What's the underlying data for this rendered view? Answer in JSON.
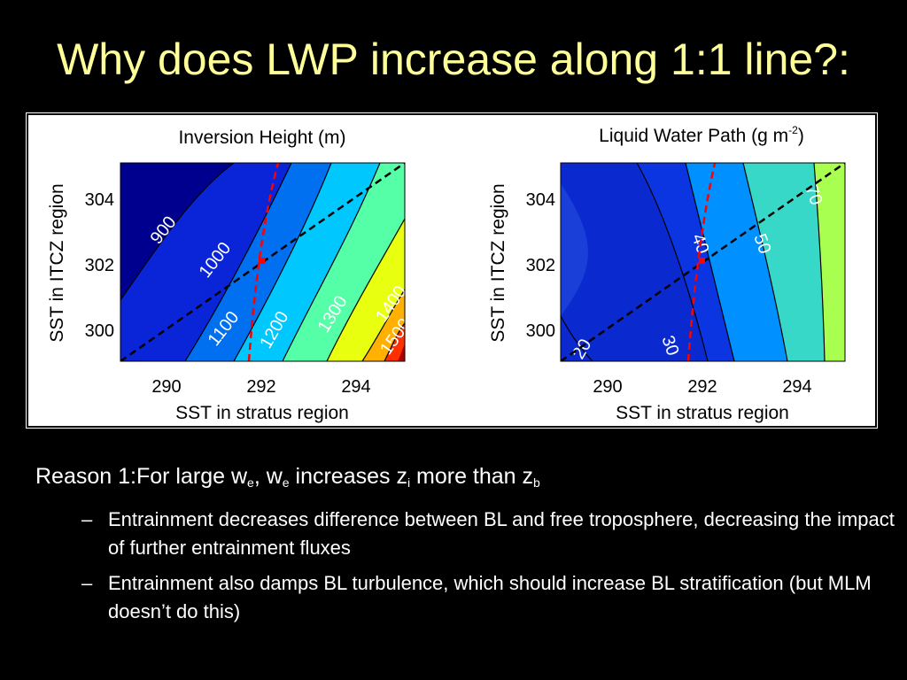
{
  "slide": {
    "title": "Why does LWP increase along 1:1 line?:",
    "bullet1": {
      "prefix": "Reason 1:For large w",
      "sub1": "e",
      "mid1": ", w",
      "sub2": "e",
      "mid2": " increases z",
      "sub3": "i",
      "mid3": " more than z",
      "sub4": "b"
    },
    "subbullets": [
      {
        "dash": "–",
        "text": "Entrainment decreases difference between BL and free troposphere, decreasing the impact of further entrainment fluxes"
      },
      {
        "dash": "–",
        "text": "Entrainment also damps BL turbulence, which should increase BL stratification (but MLM doesn’t do this)"
      }
    ]
  },
  "chart_data": [
    {
      "type": "contour",
      "title": "Inversion Height (m)",
      "xlabel": "SST in stratus region",
      "ylabel": "SST in ITCZ region",
      "xlim": [
        288.8,
        294.8
      ],
      "ylim": [
        298.8,
        305.0
      ],
      "xticks": [
        290,
        292,
        294
      ],
      "yticks": [
        300,
        302,
        304
      ],
      "contour_labels": [
        "900",
        "1000",
        "1100",
        "1200",
        "1300",
        "1400",
        "1500"
      ],
      "levels": [
        900,
        1000,
        1100,
        1200,
        1300,
        1400,
        1500
      ],
      "colors": [
        "#00008f",
        "#0a25d8",
        "#0070f0",
        "#00c8ff",
        "#55ffa8",
        "#e8ff10",
        "#ffb000",
        "#ff3000",
        "#b00000"
      ],
      "one_to_one_line": {
        "color": "#000000",
        "style": "dashed"
      },
      "max_lwp_line": {
        "color": "#ff0000",
        "style": "dashed"
      },
      "marker": {
        "x": 292,
        "y": 302,
        "color": "#ff0000"
      }
    },
    {
      "type": "contour",
      "title": "Liquid Water Path (g m",
      "title_sup": "-2",
      "title_end": ")",
      "xlabel": "SST in stratus region",
      "ylabel": "SST in ITCZ region",
      "xlim": [
        288.8,
        294.8
      ],
      "ylim": [
        298.8,
        305.0
      ],
      "xticks": [
        290,
        292,
        294
      ],
      "yticks": [
        300,
        302,
        304
      ],
      "contour_labels": [
        "20",
        "30",
        "40",
        "50",
        "70"
      ],
      "levels": [
        20,
        30,
        40,
        50,
        70
      ],
      "colors": [
        "#00008f",
        "#0a35e0",
        "#0090ff",
        "#38d8c8",
        "#a8ff50"
      ],
      "one_to_one_line": {
        "color": "#000000",
        "style": "dashed"
      },
      "max_lwp_line": {
        "color": "#ff0000",
        "style": "dashed"
      },
      "marker": {
        "x": 292,
        "y": 302,
        "color": "#ff0000"
      }
    }
  ]
}
